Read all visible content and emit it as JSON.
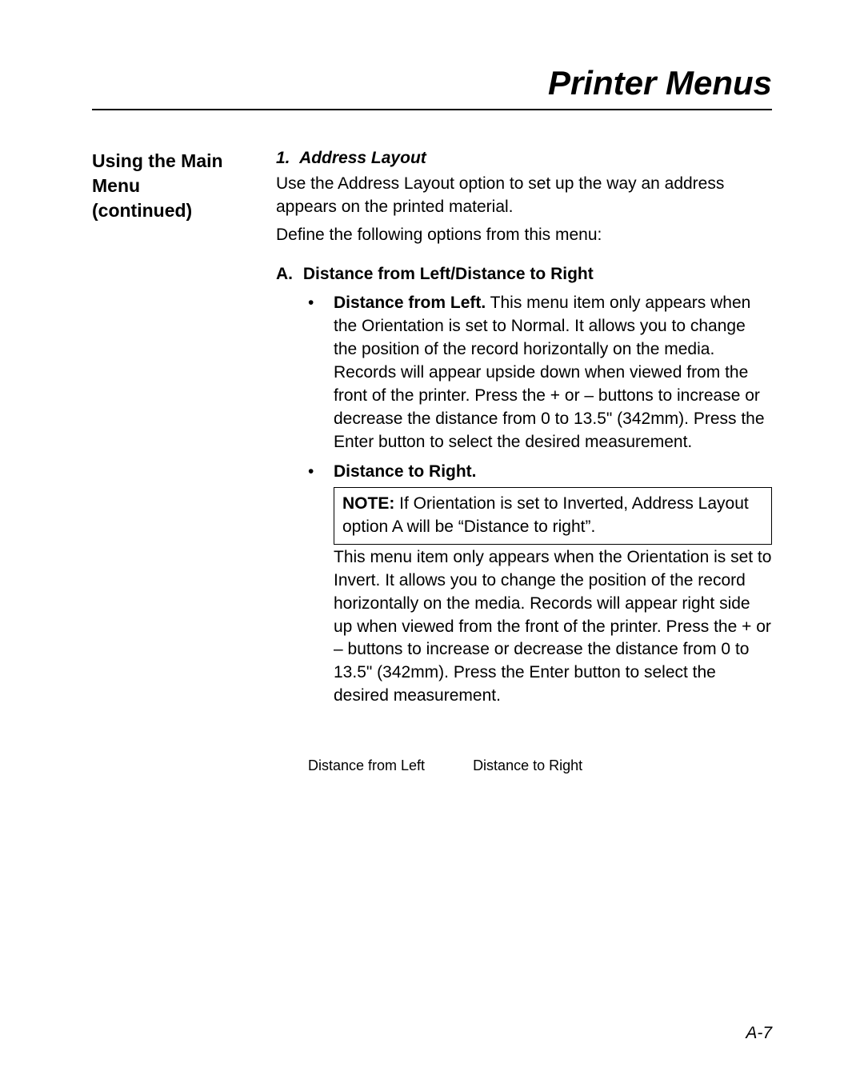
{
  "chapter_title": "Printer Menus",
  "sidebar_heading": "Using the Main Menu (continued)",
  "section": {
    "number": "1.",
    "title": "Address Layout",
    "intro": "Use the Address Layout option to set up the way an ad­dress appears on the printed material.",
    "define": "Define the following options from this menu:"
  },
  "sub": {
    "letter": "A.",
    "title": "Distance from Left/Distance to Right",
    "bullets": {
      "left": {
        "lead": "Distance from Left.",
        "text": " This menu item only ap­pears when the Orientation is set to Normal. It allows you to change the position of the record horizontally on the media. Records will appear upside down when viewed from the front of the printer. Press the + or – buttons to increase or decrease the distance from 0 to 13.5\" (342mm). Press the Enter button to select the desired measurement."
      },
      "right": {
        "lead": "Distance to Right.",
        "note_lead": "NOTE:",
        "note_text": " If Orientation is set to Inverted, Address Layout option A will be “Distance to right”.",
        "after_note": "This menu item only appears when the Orienta­tion is set to Invert. It allows you to change the position of the record horizontally on the media. Records will appear right side up when viewed from the front of the printer. Press the + or – buttons to increase or decrease the distance from 0 to 13.5\" (342mm). Press the Enter but­ton to select the desired measurement."
      }
    }
  },
  "figure_labels": {
    "left": "Distance from Left",
    "right": "Distance to Right"
  },
  "page_number": "A-7",
  "style": {
    "background_color": "#ffffff",
    "text_color": "#000000",
    "border_color": "#000000",
    "font_family": "Arial",
    "title_fontsize": 42,
    "body_fontsize": 21,
    "sidebar_fontsize": 23,
    "label_fontsize": 18
  }
}
